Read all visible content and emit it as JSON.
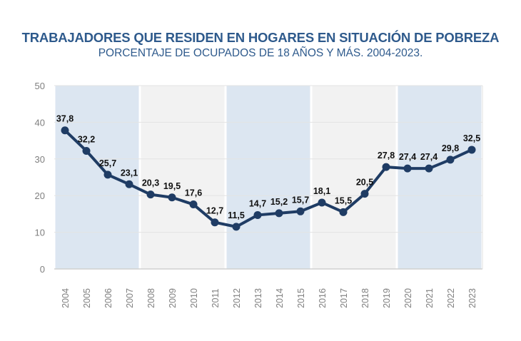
{
  "chart_data": {
    "type": "line",
    "title": "TRABAJADORES QUE RESIDEN EN HOGARES EN SITUACIÓN DE POBREZA",
    "subtitle": "PORCENTAJE DE OCUPADOS DE 18 AÑOS Y MÁS. 2004-2023.",
    "xlabel": "",
    "ylabel": "",
    "ylim": [
      0,
      50
    ],
    "yticks": [
      0,
      10,
      20,
      30,
      40,
      50
    ],
    "grid": true,
    "x": [
      "2004",
      "2005",
      "2006",
      "2007",
      "2008",
      "2009",
      "2010",
      "2011",
      "2012",
      "2013",
      "2014",
      "2015",
      "2016",
      "2017",
      "2018",
      "2019",
      "2020",
      "2021",
      "2022",
      "2023"
    ],
    "values": [
      37.8,
      32.2,
      25.7,
      23.1,
      20.3,
      19.5,
      17.6,
      12.7,
      11.5,
      14.7,
      15.2,
      15.7,
      18.1,
      15.5,
      20.5,
      27.8,
      27.4,
      27.4,
      29.8,
      32.5
    ],
    "data_labels": [
      "37,8",
      "32,2",
      "25,7",
      "23,1",
      "20,3",
      "19,5",
      "17,6",
      "12,7",
      "11,5",
      "14,7",
      "15,2",
      "15,7",
      "18,1",
      "15,5",
      "20,5",
      "27,8",
      "27,4",
      "27,4",
      "29,8",
      "32,5"
    ],
    "background_bands": [
      {
        "from": "2004",
        "to": "2007",
        "color": "#dce6f1"
      },
      {
        "from": "2008",
        "to": "2011",
        "color": "#f2f2f2"
      },
      {
        "from": "2012",
        "to": "2015",
        "color": "#dce6f1"
      },
      {
        "from": "2016",
        "to": "2019",
        "color": "#f2f2f2"
      },
      {
        "from": "2020",
        "to": "2023",
        "color": "#dce6f1"
      }
    ],
    "colors": {
      "line": "#1f3c64",
      "title": "#2e5a8c",
      "axis_text": "#7f7f7f"
    }
  }
}
